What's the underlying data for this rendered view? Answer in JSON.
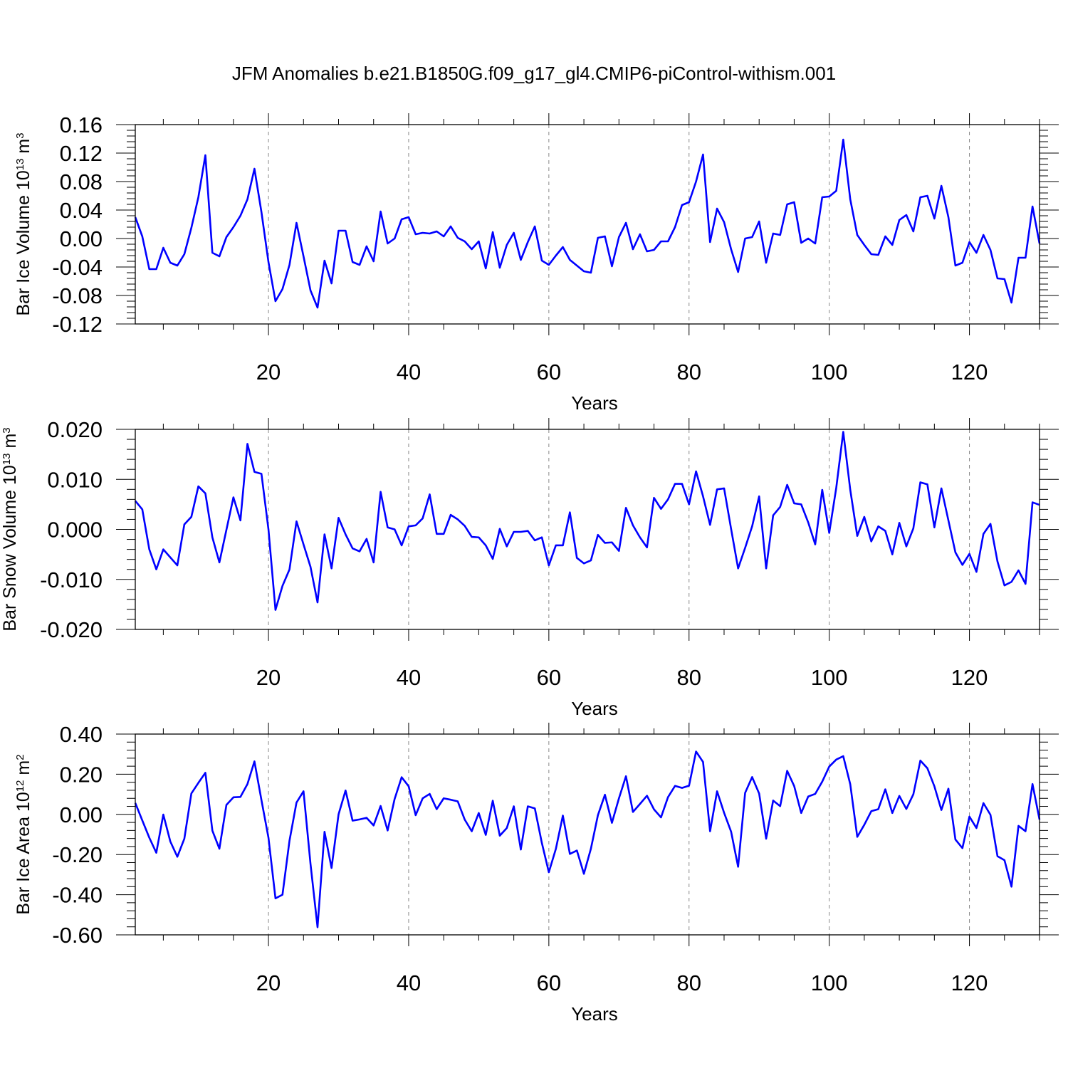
{
  "title": "JFM Anomalies b.e21.B1850G.f09_g17_gl4.CMIP6-piControl-withism.001",
  "line_color": "#0000ff",
  "chart_data": [
    {
      "type": "line",
      "title": "",
      "ylabel_main": "Bar Ice Volume 10",
      "ylabel_exp": "13",
      "ylabel_unit": " m",
      "ylabel_unit_exp": "3",
      "xlabel": "Years",
      "xlim": [
        1,
        130
      ],
      "ylim": [
        -0.12,
        0.16
      ],
      "xticks": [
        20,
        40,
        60,
        80,
        100,
        120
      ],
      "xtick_labels": [
        "20",
        "40",
        "60",
        "80",
        "100",
        "120"
      ],
      "yticks": [
        -0.12,
        -0.08,
        -0.04,
        0.0,
        0.04,
        0.08,
        0.12,
        0.16
      ],
      "ytick_labels": [
        "-0.12",
        "-0.08",
        "-0.04",
        "0.00",
        "0.04",
        "0.08",
        "0.12",
        "0.16"
      ],
      "grid": "vertical dashed",
      "series": [
        {
          "name": "Bar Ice Volume",
          "x_start": 1,
          "values": [
            0.03,
            0.003,
            -0.043,
            -0.043,
            -0.013,
            -0.034,
            -0.038,
            -0.022,
            0.015,
            0.058,
            0.117,
            -0.02,
            -0.025,
            0.002,
            0.016,
            0.032,
            0.055,
            0.098,
            0.037,
            -0.033,
            -0.088,
            -0.071,
            -0.037,
            0.022,
            -0.025,
            -0.073,
            -0.097,
            -0.031,
            -0.063,
            0.011,
            0.011,
            -0.033,
            -0.037,
            -0.011,
            -0.032,
            0.038,
            -0.007,
            0.0,
            0.027,
            0.03,
            0.006,
            0.008,
            0.007,
            0.01,
            0.003,
            0.017,
            0.001,
            -0.004,
            -0.015,
            -0.004,
            -0.042,
            0.009,
            -0.041,
            -0.009,
            0.008,
            -0.03,
            -0.005,
            0.017,
            -0.031,
            -0.037,
            -0.024,
            -0.012,
            -0.03,
            -0.038,
            -0.046,
            -0.048,
            0.001,
            0.003,
            -0.039,
            0.002,
            0.022,
            -0.015,
            0.006,
            -0.018,
            -0.016,
            -0.004,
            -0.004,
            0.016,
            0.047,
            0.051,
            0.08,
            0.118,
            -0.005,
            0.042,
            0.023,
            -0.015,
            -0.047,
            0.0,
            0.002,
            0.024,
            -0.034,
            0.007,
            0.005,
            0.048,
            0.051,
            -0.006,
            0.0,
            -0.007,
            0.058,
            0.059,
            0.067,
            0.139,
            0.055,
            0.005,
            -0.009,
            -0.022,
            -0.023,
            0.003,
            -0.009,
            0.026,
            0.033,
            0.01,
            0.058,
            0.06,
            0.028,
            0.074,
            0.03,
            -0.038,
            -0.034,
            -0.005,
            -0.02,
            0.005,
            -0.016,
            -0.056,
            -0.057,
            -0.09,
            -0.027,
            -0.027,
            0.045,
            -0.007
          ]
        }
      ]
    },
    {
      "type": "line",
      "title": "",
      "ylabel_main": "Bar Snow Volume 10",
      "ylabel_exp": "13",
      "ylabel_unit": " m",
      "ylabel_unit_exp": "3",
      "xlabel": "Years",
      "xlim": [
        1,
        130
      ],
      "ylim": [
        -0.02,
        0.02
      ],
      "xticks": [
        20,
        40,
        60,
        80,
        100,
        120
      ],
      "xtick_labels": [
        "20",
        "40",
        "60",
        "80",
        "100",
        "120"
      ],
      "yticks": [
        -0.02,
        -0.01,
        0.0,
        0.01,
        0.02
      ],
      "ytick_labels": [
        "-0.020",
        "-0.010",
        "0.000",
        "0.010",
        "0.020"
      ],
      "grid": "vertical dashed",
      "series": [
        {
          "name": "Bar Snow Volume",
          "x_start": 1,
          "values": [
            0.0057,
            0.004,
            -0.004,
            -0.008,
            -0.004,
            -0.0056,
            -0.0072,
            0.001,
            0.0025,
            0.0086,
            0.0072,
            -0.0016,
            -0.0066,
            -0.0001,
            0.0064,
            0.0018,
            0.0171,
            0.0115,
            0.0111,
            0.0,
            -0.0161,
            -0.0113,
            -0.008,
            0.0016,
            -0.003,
            -0.0075,
            -0.0146,
            -0.001,
            -0.0078,
            0.0023,
            -0.001,
            -0.0038,
            -0.0044,
            -0.0019,
            -0.0066,
            0.0075,
            0.0004,
            0.0,
            -0.0032,
            0.0006,
            0.0008,
            0.0022,
            0.007,
            -0.0009,
            -0.0009,
            0.0029,
            0.002,
            0.0007,
            -0.0015,
            -0.0016,
            -0.0032,
            -0.0059,
            0.0001,
            -0.0034,
            -0.0005,
            -0.0005,
            -0.0003,
            -0.0022,
            -0.0016,
            -0.0072,
            -0.0032,
            -0.0032,
            0.0034,
            -0.0057,
            -0.0068,
            -0.0062,
            -0.0011,
            -0.0027,
            -0.0026,
            -0.0043,
            0.0043,
            0.0008,
            -0.0016,
            -0.0036,
            0.0063,
            0.0041,
            0.006,
            0.0091,
            0.0091,
            0.005,
            0.0116,
            0.0066,
            0.0009,
            0.008,
            0.0082,
            0.0001,
            -0.0078,
            -0.0037,
            0.0006,
            0.0066,
            -0.0078,
            0.0028,
            0.0045,
            0.0089,
            0.0052,
            0.005,
            0.0014,
            -0.003,
            0.0079,
            -0.0007,
            0.0083,
            0.0195,
            0.0079,
            -0.0013,
            0.0025,
            -0.0024,
            0.0006,
            -0.0003,
            -0.005,
            0.0013,
            -0.0034,
            0.0002,
            0.0094,
            0.009,
            0.0004,
            0.0082,
            0.0018,
            -0.0046,
            -0.0071,
            -0.0049,
            -0.0085,
            -0.0009,
            0.0011,
            -0.0064,
            -0.0112,
            -0.0105,
            -0.0082,
            -0.0109,
            0.0054,
            0.0049
          ]
        }
      ]
    },
    {
      "type": "line",
      "title": "",
      "ylabel_main": "Bar Ice Area 10",
      "ylabel_exp": "12",
      "ylabel_unit": " m",
      "ylabel_unit_exp": "2",
      "xlabel": "Years",
      "xlim": [
        1,
        130
      ],
      "ylim": [
        -0.6,
        0.4
      ],
      "xticks": [
        20,
        40,
        60,
        80,
        100,
        120
      ],
      "xtick_labels": [
        "20",
        "40",
        "60",
        "80",
        "100",
        "120"
      ],
      "yticks": [
        -0.6,
        -0.4,
        -0.2,
        0.0,
        0.2,
        0.4
      ],
      "ytick_labels": [
        "-0.60",
        "-0.40",
        "-0.20",
        "0.00",
        "0.20",
        "0.40"
      ],
      "grid": "vertical dashed",
      "series": [
        {
          "name": "Bar Ice Area",
          "x_start": 1,
          "values": [
            0.057,
            -0.03,
            -0.116,
            -0.191,
            -0.001,
            -0.135,
            -0.211,
            -0.121,
            0.104,
            0.157,
            0.207,
            -0.081,
            -0.171,
            0.047,
            0.085,
            0.087,
            0.151,
            0.264,
            0.071,
            -0.116,
            -0.418,
            -0.4,
            -0.131,
            0.059,
            0.115,
            -0.247,
            -0.562,
            -0.087,
            -0.267,
            0.0,
            0.119,
            -0.031,
            -0.025,
            -0.017,
            -0.055,
            0.042,
            -0.08,
            0.077,
            0.185,
            0.14,
            -0.004,
            0.08,
            0.102,
            0.026,
            0.08,
            0.073,
            0.065,
            -0.026,
            -0.084,
            0.007,
            -0.102,
            0.068,
            -0.106,
            -0.068,
            0.04,
            -0.175,
            0.04,
            0.03,
            -0.142,
            -0.288,
            -0.172,
            -0.006,
            -0.197,
            -0.18,
            -0.296,
            -0.171,
            -0.004,
            0.098,
            -0.042,
            0.08,
            0.19,
            0.012,
            0.052,
            0.093,
            0.025,
            -0.015,
            0.086,
            0.142,
            0.132,
            0.143,
            0.313,
            0.261,
            -0.084,
            0.115,
            0.008,
            -0.086,
            -0.261,
            0.107,
            0.186,
            0.104,
            -0.121,
            0.069,
            0.041,
            0.217,
            0.141,
            0.007,
            0.089,
            0.102,
            0.163,
            0.238,
            0.273,
            0.29,
            0.15,
            -0.112,
            -0.052,
            0.016,
            0.026,
            0.125,
            0.007,
            0.092,
            0.027,
            0.1,
            0.268,
            0.23,
            0.14,
            0.022,
            0.128,
            -0.125,
            -0.168,
            -0.011,
            -0.068,
            0.056,
            -0.002,
            -0.208,
            -0.228,
            -0.36,
            -0.057,
            -0.084,
            0.151,
            -0.026
          ]
        }
      ]
    }
  ]
}
